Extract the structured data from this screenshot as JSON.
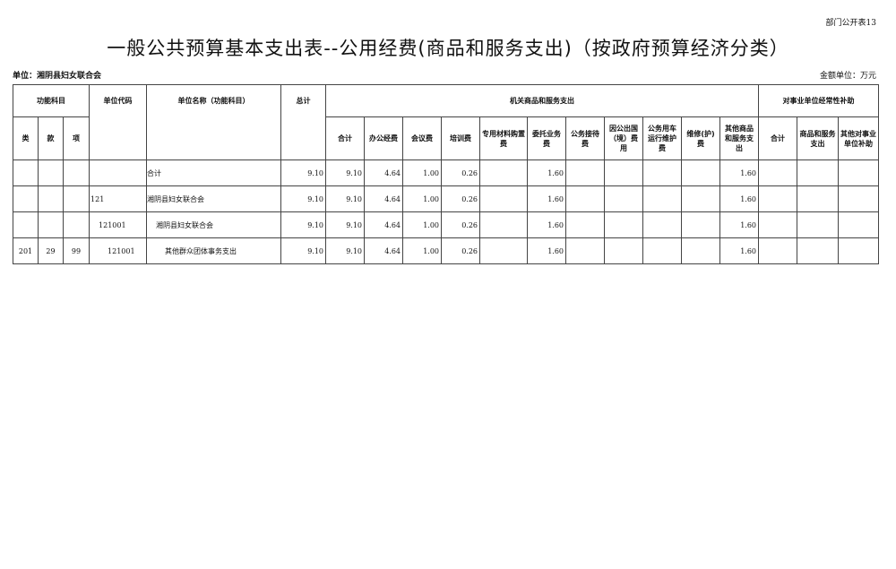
{
  "form_no": "部门公开表13",
  "title": "一般公共预算基本支出表--公用经费(商品和服务支出)（按政府预算经济分类）",
  "unit": "单位：湘阴县妇女联合会",
  "money_unit": "金额单位：万元",
  "headers": {
    "func": "功能科目",
    "code": "单位代码",
    "name": "单位名称（功能科目）",
    "total": "总计",
    "org": "机关商品和服务支出",
    "sub": "对事业单位经常性补助",
    "lei": "类",
    "kuan": "款",
    "xiang": "项",
    "org_cols": [
      "合计",
      "办公经费",
      "会议费",
      "培训费",
      "专用材料购置费",
      "委托业务费",
      "公务接待费",
      "因公出国（境）费用",
      "公务用车运行维护费",
      "维修(护)费",
      "其他商品和服务支出"
    ],
    "sub_cols": [
      "合计",
      "商品和服务支出",
      "其他对事业单位补助"
    ]
  },
  "rows": [
    {
      "lei": "",
      "kuan": "",
      "xiang": "",
      "code": "",
      "name": "合计",
      "total": "9.10",
      "v": [
        "9.10",
        "4.64",
        "1.00",
        "0.26",
        "",
        "1.60",
        "",
        "",
        "",
        "",
        "1.60",
        "",
        "",
        ""
      ]
    },
    {
      "lei": "",
      "kuan": "",
      "xiang": "",
      "code": "121",
      "name": "湘阴县妇女联合会",
      "total": "9.10",
      "v": [
        "9.10",
        "4.64",
        "1.00",
        "0.26",
        "",
        "1.60",
        "",
        "",
        "",
        "",
        "1.60",
        "",
        "",
        ""
      ]
    },
    {
      "lei": "",
      "kuan": "",
      "xiang": "",
      "code": "121001",
      "name": "湘阴县妇女联合会",
      "total": "9.10",
      "v": [
        "9.10",
        "4.64",
        "1.00",
        "0.26",
        "",
        "1.60",
        "",
        "",
        "",
        "",
        "1.60",
        "",
        "",
        ""
      ]
    },
    {
      "lei": "201",
      "kuan": "29",
      "xiang": "99",
      "code": "121001",
      "name": "其他群众团体事务支出",
      "total": "9.10",
      "v": [
        "9.10",
        "4.64",
        "1.00",
        "0.26",
        "",
        "1.60",
        "",
        "",
        "",
        "",
        "1.60",
        "",
        "",
        ""
      ]
    }
  ]
}
